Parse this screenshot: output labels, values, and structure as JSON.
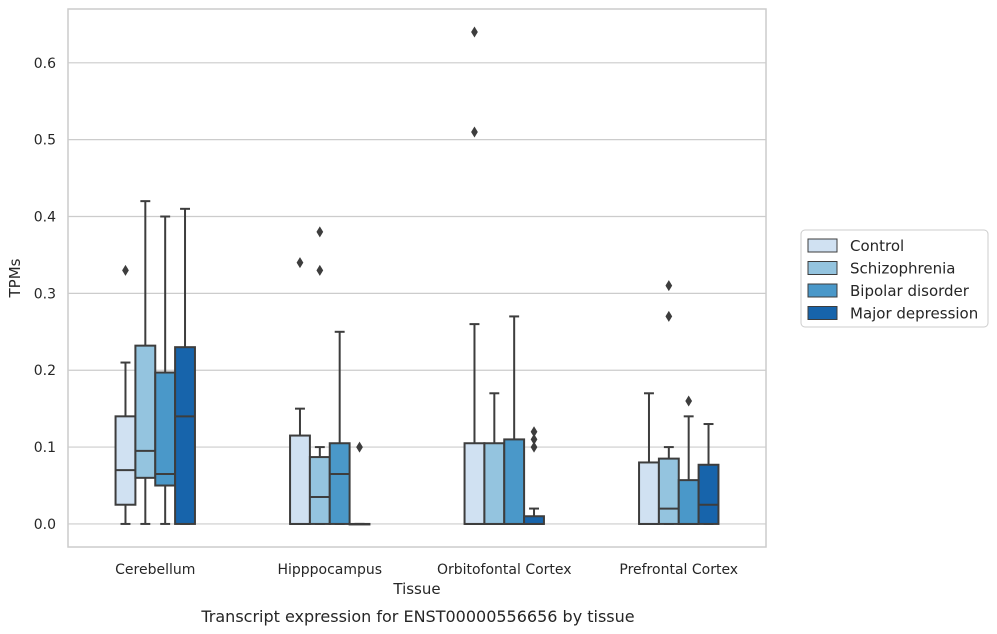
{
  "chart_data": {
    "type": "box",
    "title": "",
    "caption": "Transcript expression for ENST00000556656 by tissue",
    "xlabel": "Tissue",
    "ylabel": "TPMs",
    "ylim": [
      -0.03,
      0.67
    ],
    "yticks": [
      0.0,
      0.1,
      0.2,
      0.3,
      0.4,
      0.5,
      0.6
    ],
    "ytick_labels": [
      "0.0",
      "0.1",
      "0.2",
      "0.3",
      "0.4",
      "0.5",
      "0.6"
    ],
    "grid": "horizontal",
    "legend_position": "right",
    "categories": [
      "Cerebellum",
      "Hipppocampus",
      "Orbitofontal Cortex",
      "Prefrontal Cortex"
    ],
    "series": [
      {
        "name": "Control",
        "color": "#d0e1f2",
        "boxes": [
          {
            "whislo": 0.0,
            "q1": 0.025,
            "med": 0.07,
            "q3": 0.14,
            "whishi": 0.21,
            "fliers": [
              0.33
            ]
          },
          {
            "whislo": 0.0,
            "q1": 0.0,
            "med": 0.0,
            "q3": 0.115,
            "whishi": 0.15,
            "fliers": [
              0.34
            ]
          },
          {
            "whislo": 0.0,
            "q1": 0.0,
            "med": 0.0,
            "q3": 0.105,
            "whishi": 0.26,
            "fliers": [
              0.64,
              0.51
            ]
          },
          {
            "whislo": 0.0,
            "q1": 0.0,
            "med": 0.0,
            "q3": 0.08,
            "whishi": 0.17,
            "fliers": []
          }
        ]
      },
      {
        "name": "Schizophrenia",
        "color": "#94c4df",
        "boxes": [
          {
            "whislo": 0.0,
            "q1": 0.06,
            "med": 0.095,
            "q3": 0.232,
            "whishi": 0.42,
            "fliers": []
          },
          {
            "whislo": 0.0,
            "q1": 0.0,
            "med": 0.035,
            "q3": 0.087,
            "whishi": 0.1,
            "fliers": [
              0.38,
              0.33
            ]
          },
          {
            "whislo": 0.0,
            "q1": 0.0,
            "med": 0.0,
            "q3": 0.105,
            "whishi": 0.17,
            "fliers": []
          },
          {
            "whislo": 0.0,
            "q1": 0.0,
            "med": 0.02,
            "q3": 0.085,
            "whishi": 0.1,
            "fliers": [
              0.31,
              0.27
            ]
          }
        ]
      },
      {
        "name": "Bipolar disorder",
        "color": "#4a98c9",
        "boxes": [
          {
            "whislo": 0.0,
            "q1": 0.05,
            "med": 0.065,
            "q3": 0.197,
            "whishi": 0.4,
            "fliers": []
          },
          {
            "whislo": 0.0,
            "q1": 0.0,
            "med": 0.065,
            "q3": 0.105,
            "whishi": 0.25,
            "fliers": []
          },
          {
            "whislo": 0.0,
            "q1": 0.0,
            "med": 0.0,
            "q3": 0.11,
            "whishi": 0.27,
            "fliers": []
          },
          {
            "whislo": 0.0,
            "q1": 0.0,
            "med": 0.0,
            "q3": 0.057,
            "whishi": 0.14,
            "fliers": [
              0.16
            ]
          }
        ]
      },
      {
        "name": "Major depression",
        "color": "#1764ab",
        "boxes": [
          {
            "whislo": 0.0,
            "q1": 0.0,
            "med": 0.14,
            "q3": 0.23,
            "whishi": 0.41,
            "fliers": []
          },
          {
            "whislo": 0.0,
            "q1": 0.0,
            "med": 0.0,
            "q3": 0.0,
            "whishi": 0.0,
            "fliers": [
              0.1
            ]
          },
          {
            "whislo": 0.0,
            "q1": 0.0,
            "med": 0.0,
            "q3": 0.01,
            "whishi": 0.02,
            "fliers": [
              0.12,
              0.11,
              0.1
            ]
          },
          {
            "whislo": 0.0,
            "q1": 0.0,
            "med": 0.025,
            "q3": 0.077,
            "whishi": 0.13,
            "fliers": []
          }
        ]
      }
    ]
  }
}
